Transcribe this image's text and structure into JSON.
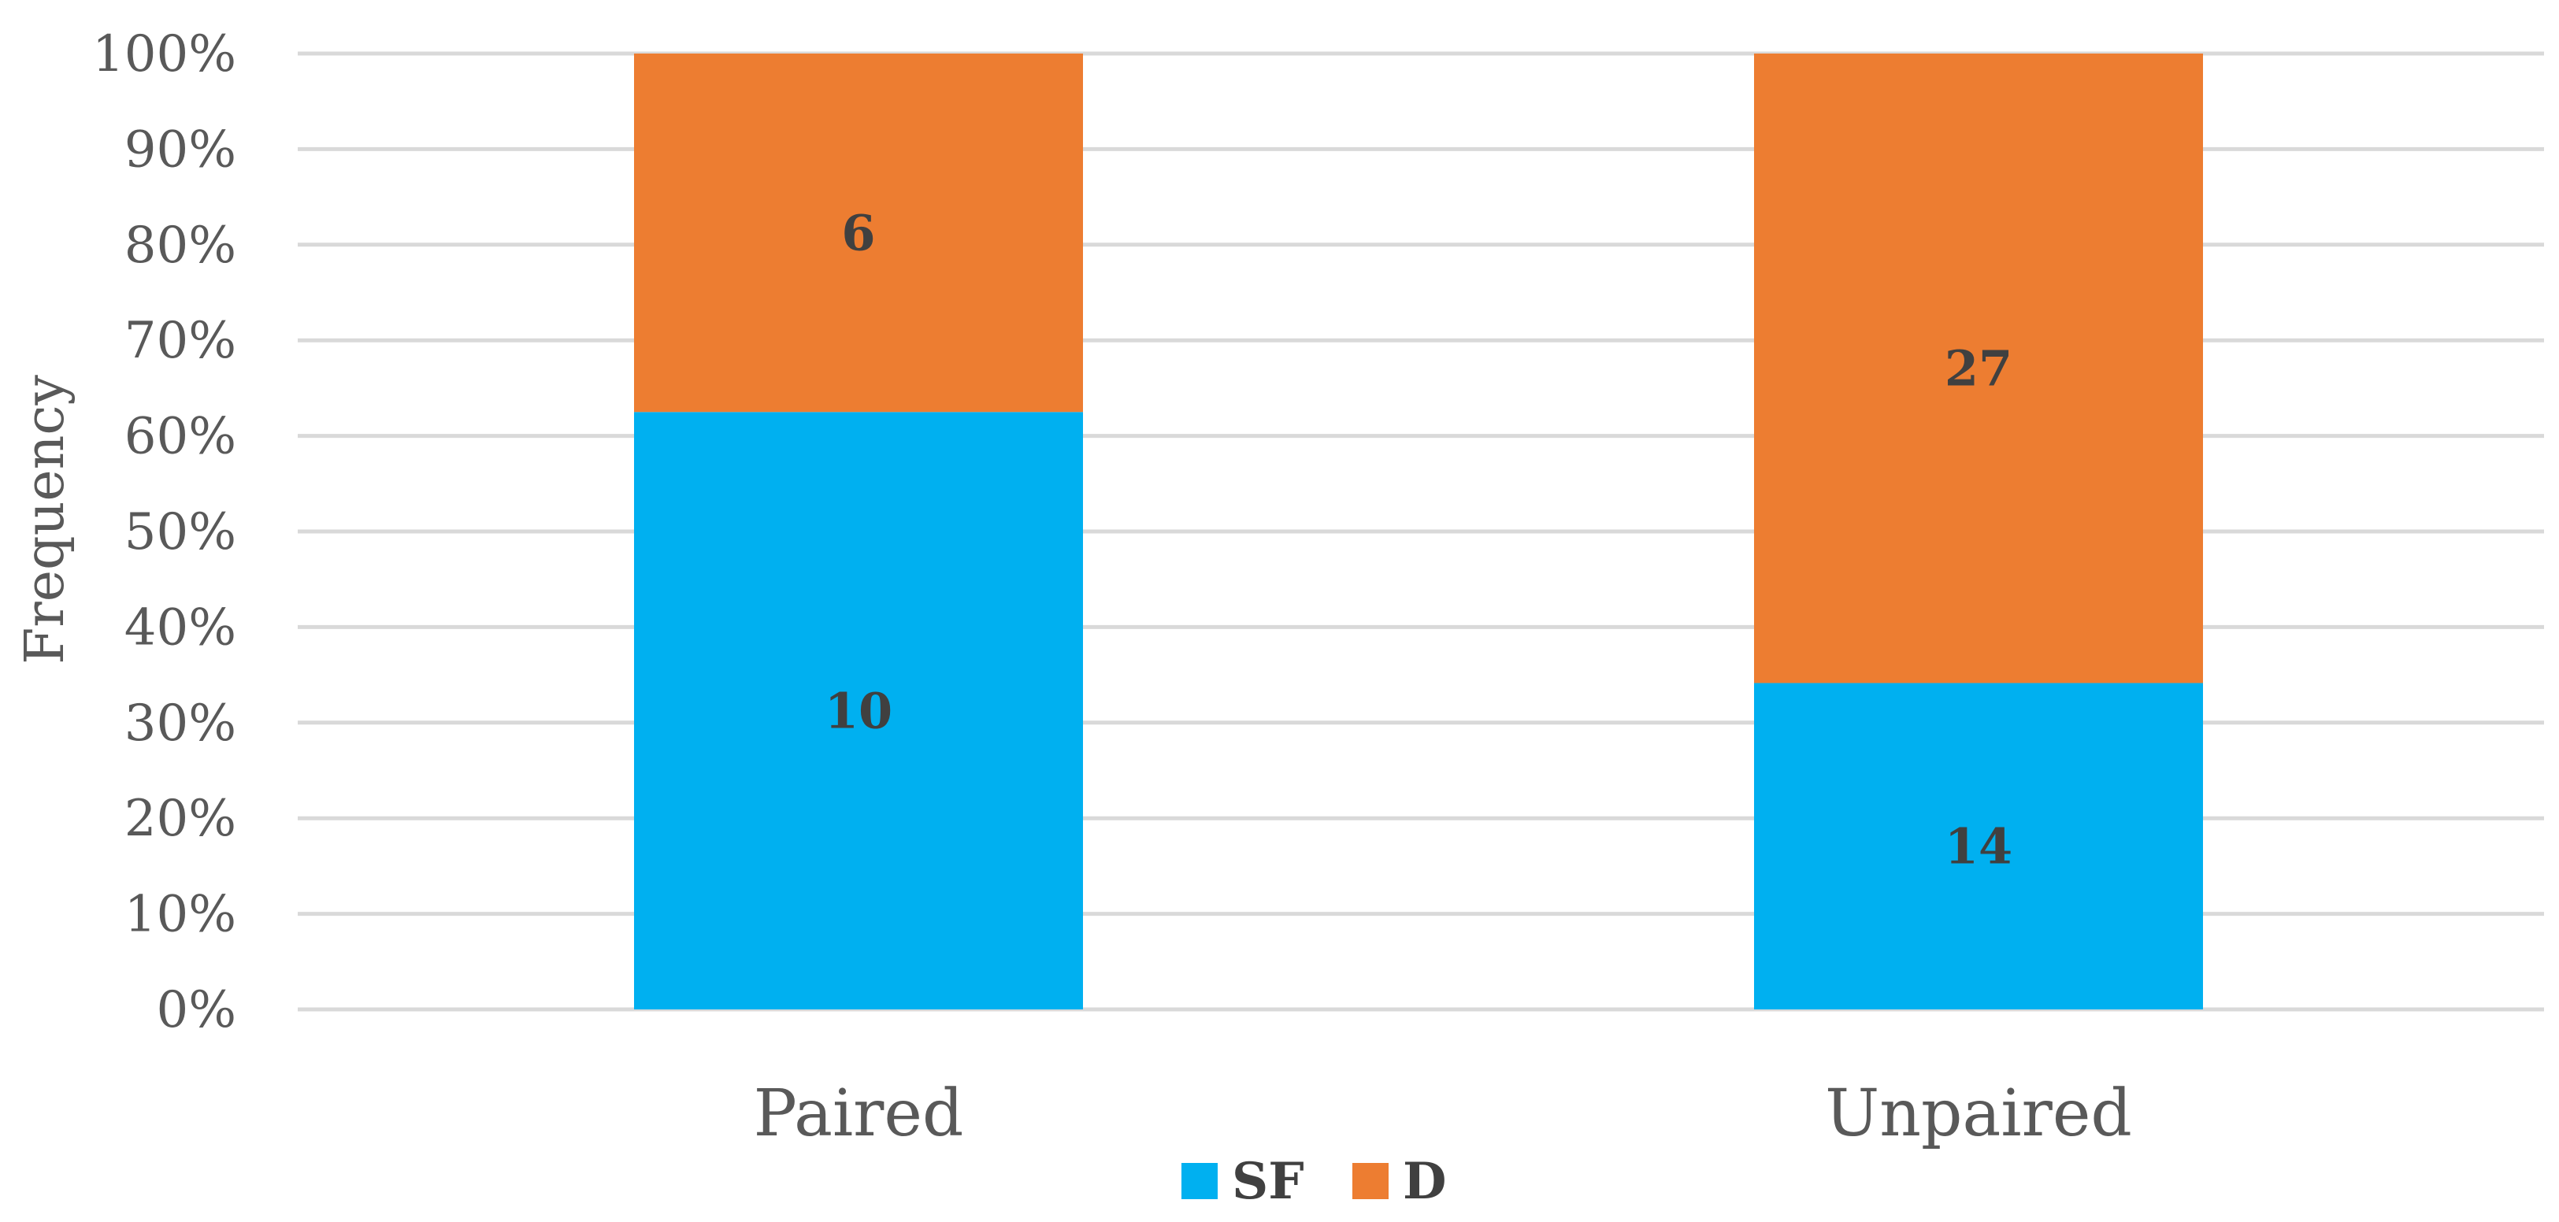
{
  "chart_data": {
    "type": "bar",
    "stacked": true,
    "normalized": true,
    "categories": [
      "Paired",
      "Unpaired"
    ],
    "series": [
      {
        "name": "SF",
        "values": [
          10,
          14
        ],
        "color": "#00b0f0"
      },
      {
        "name": "D",
        "values": [
          6,
          27
        ],
        "color": "#ed7d31"
      }
    ],
    "ylabel": "Frequency",
    "xlabel": "",
    "ylim": [
      0,
      100
    ],
    "yticks": [
      "0%",
      "10%",
      "20%",
      "30%",
      "40%",
      "50%",
      "60%",
      "70%",
      "80%",
      "90%",
      "100%"
    ],
    "grid": true,
    "legend_position": "bottom"
  }
}
